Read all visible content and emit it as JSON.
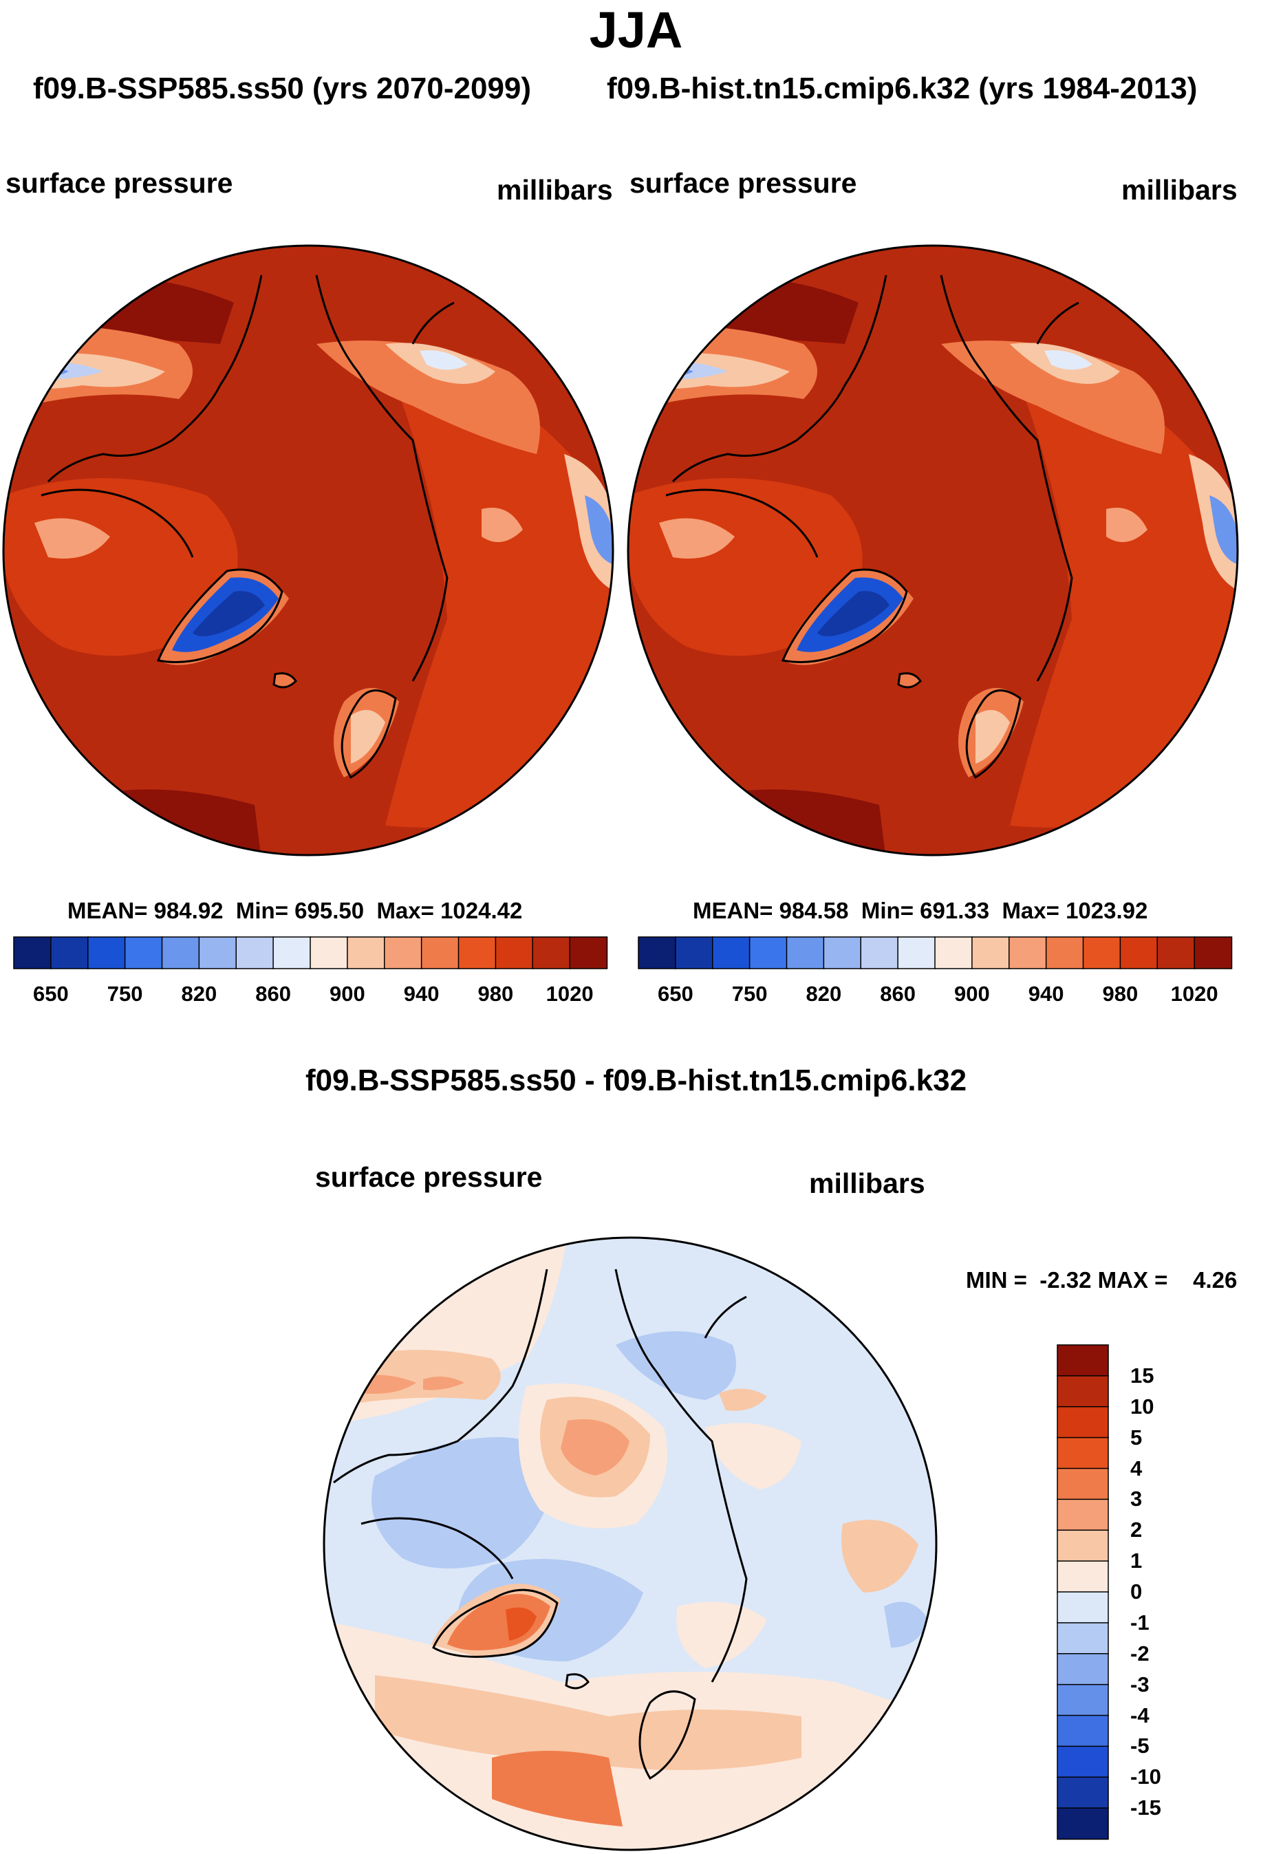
{
  "season": "JJA",
  "case_headers": {
    "left": "f09.B-SSP585.ss50 (yrs 2070-2099)",
    "right": "f09.B-hist.tn15.cmip6.k32 (yrs 1984-2013)"
  },
  "panels": {
    "future": {
      "variable": "surface pressure",
      "units": "millibars",
      "mean_label": "MEAN= 984.92",
      "min_label": "Min= 695.50",
      "max_label": "Max= 1024.42"
    },
    "historical": {
      "variable": "surface pressure",
      "units": "millibars",
      "mean_label": "MEAN= 984.58",
      "min_label": "Min= 691.33",
      "max_label": "Max= 1023.92"
    },
    "difference": {
      "title": "f09.B-SSP585.ss50 - f09.B-hist.tn15.cmip6.k32",
      "variable": "surface pressure",
      "units": "millibars",
      "minmax_label": "MIN =  -2.32 MAX =    4.26"
    }
  },
  "chart_data": [
    {
      "type": "heatmap",
      "name": "future-map",
      "projection": "north polar stereographic",
      "title": "surface pressure",
      "units": "millibars",
      "mean": 984.92,
      "min": 695.5,
      "max": 1024.42,
      "colorbar": {
        "levels": [
          650,
          700,
          750,
          800,
          820,
          840,
          860,
          880,
          900,
          920,
          940,
          960,
          980,
          1000,
          1020
        ],
        "tick_labels": [
          "650",
          "750",
          "820",
          "860",
          "900",
          "940",
          "980",
          "1020"
        ],
        "tick_level_indices": [
          0,
          2,
          4,
          6,
          8,
          10,
          12,
          14
        ],
        "colors": [
          "#0b1f73",
          "#1238a6",
          "#1a52d6",
          "#3a75ec",
          "#6b96ee",
          "#97b5f0",
          "#bfd0f4",
          "#e2ebfa",
          "#fbe9dd",
          "#f8c7a6",
          "#f5a078",
          "#f07b4a",
          "#e85420",
          "#d63a10",
          "#b82a0e",
          "#8c1208"
        ]
      }
    },
    {
      "type": "heatmap",
      "name": "historical-map",
      "projection": "north polar stereographic",
      "title": "surface pressure",
      "units": "millibars",
      "mean": 984.58,
      "min": 691.33,
      "max": 1023.92,
      "colorbar": {
        "levels": [
          650,
          700,
          750,
          800,
          820,
          840,
          860,
          880,
          900,
          920,
          940,
          960,
          980,
          1000,
          1020
        ],
        "tick_labels": [
          "650",
          "750",
          "820",
          "860",
          "900",
          "940",
          "980",
          "1020"
        ],
        "tick_level_indices": [
          0,
          2,
          4,
          6,
          8,
          10,
          12,
          14
        ],
        "colors": [
          "#0b1f73",
          "#1238a6",
          "#1a52d6",
          "#3a75ec",
          "#6b96ee",
          "#97b5f0",
          "#bfd0f4",
          "#e2ebfa",
          "#fbe9dd",
          "#f8c7a6",
          "#f5a078",
          "#f07b4a",
          "#e85420",
          "#d63a10",
          "#b82a0e",
          "#8c1208"
        ]
      }
    },
    {
      "type": "heatmap",
      "name": "difference-map",
      "projection": "north polar stereographic",
      "title": "f09.B-SSP585.ss50 - f09.B-hist.tn15.cmip6.k32",
      "units": "millibars",
      "min": -2.32,
      "max": 4.26,
      "colorbar": {
        "orientation": "vertical",
        "levels": [
          15,
          10,
          5,
          4,
          3,
          2,
          1,
          0,
          -1,
          -2,
          -3,
          -4,
          -5,
          -10,
          -15
        ],
        "tick_labels": [
          "15",
          "10",
          "5",
          "4",
          "3",
          "2",
          "1",
          "0",
          "-1",
          "-2",
          "-3",
          "-4",
          "-5",
          "-10",
          "-15"
        ],
        "colors": [
          "#8c1208",
          "#b82a0e",
          "#d63a10",
          "#e85420",
          "#f07b4a",
          "#f5a078",
          "#f8c7a6",
          "#fbe9dd",
          "#dce8f8",
          "#b4cbf3",
          "#8aacee",
          "#6590ea",
          "#3f70e3",
          "#1f4fd4",
          "#163aa8",
          "#0b1f73"
        ]
      }
    }
  ]
}
